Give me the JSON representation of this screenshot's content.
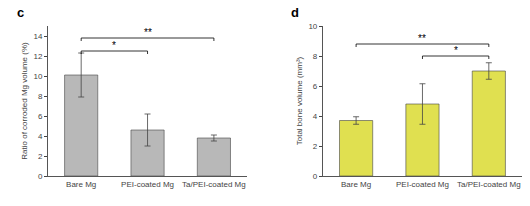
{
  "chart_data": [
    {
      "type": "bar",
      "title": "c",
      "categories": [
        "Bare Mg",
        "PEI-coated Mg",
        "Ta/PEI-coated Mg"
      ],
      "values": [
        10.1,
        4.6,
        3.8
      ],
      "errors": [
        2.2,
        1.6,
        0.3
      ],
      "color": "#b8b8b8",
      "ylabel": "Ratio of corroded Mg volume (%)",
      "ylim": [
        0,
        15
      ],
      "yticks": [
        0,
        2,
        4,
        6,
        8,
        10,
        12,
        14
      ],
      "grid": false,
      "annotations": [
        {
          "x1": "Bare Mg",
          "x2": "PEI-coated Mg",
          "y": 12.5,
          "text": "*"
        },
        {
          "x1": "Bare Mg",
          "x2": "Ta/PEI-coated Mg",
          "y": 13.8,
          "text": "**"
        }
      ]
    },
    {
      "type": "bar",
      "title": "d",
      "categories": [
        "Bare Mg",
        "PEI-coated Mg",
        "Ta/PEI-coated Mg"
      ],
      "values": [
        3.7,
        4.8,
        7.0
      ],
      "errors": [
        0.25,
        1.35,
        0.55
      ],
      "color": "#e0e050",
      "ylabel": "Total bone volume (mm³)",
      "ylim": [
        0,
        10
      ],
      "yticks": [
        0,
        2,
        4,
        6,
        8,
        10
      ],
      "grid": false,
      "annotations": [
        {
          "x1": "Bare Mg",
          "x2": "Ta/PEI-coated Mg",
          "y": 8.8,
          "text": "**"
        },
        {
          "x1": "PEI-coated Mg",
          "x2": "Ta/PEI-coated Mg",
          "y": 8.0,
          "text": "*"
        }
      ]
    }
  ]
}
